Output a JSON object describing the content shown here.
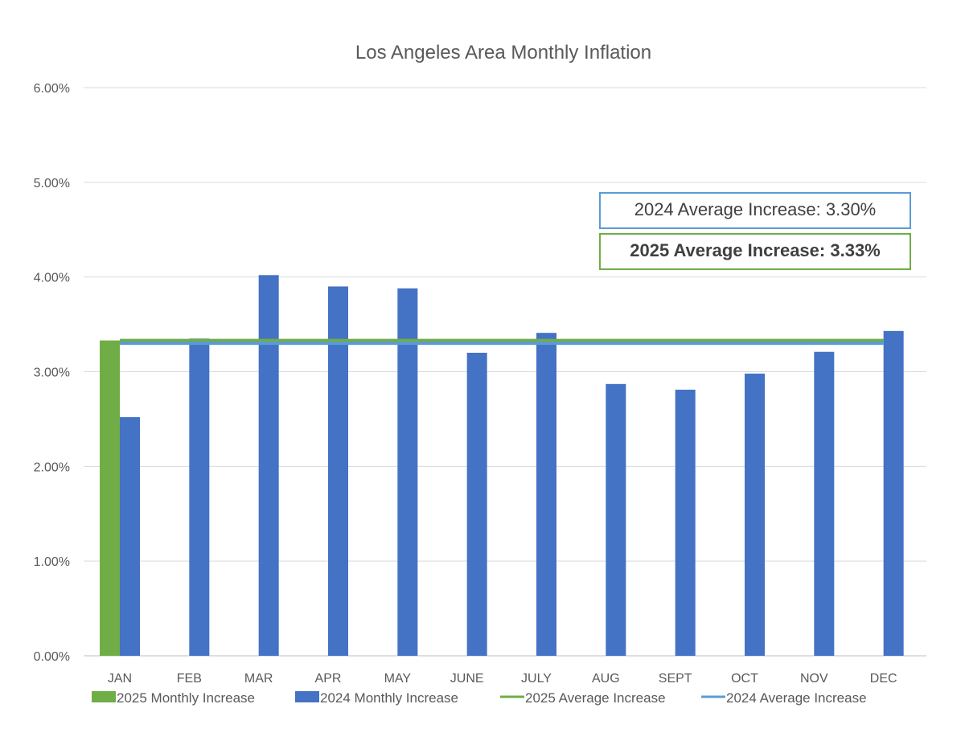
{
  "chart_data": {
    "type": "bar",
    "title": "Los Angeles Area Monthly Inflation",
    "xlabel": "",
    "ylabel": "",
    "ylim": [
      0,
      6
    ],
    "y_ticks": [
      "0.00%",
      "1.00%",
      "2.00%",
      "3.00%",
      "4.00%",
      "5.00%",
      "6.00%"
    ],
    "grid": true,
    "legend_position": "bottom",
    "categories": [
      "JAN",
      "FEB",
      "MAR",
      "APR",
      "MAY",
      "JUNE",
      "JULY",
      "AUG",
      "SEPT",
      "OCT",
      "NOV",
      "DEC"
    ],
    "series": [
      {
        "name": "2025 Monthly Increase",
        "kind": "bar",
        "color": "#70ad47",
        "values": [
          3.33,
          null,
          null,
          null,
          null,
          null,
          null,
          null,
          null,
          null,
          null,
          null
        ]
      },
      {
        "name": "2024 Monthly Increase",
        "kind": "bar",
        "color": "#4472c4",
        "values": [
          2.52,
          3.35,
          4.02,
          3.9,
          3.88,
          3.2,
          3.41,
          2.87,
          2.81,
          2.98,
          3.21,
          3.43
        ]
      },
      {
        "name": "2025 Average Increase",
        "kind": "line",
        "color": "#70ad47",
        "value": 3.33
      },
      {
        "name": "2024 Average Increase",
        "kind": "line",
        "color": "#5b9bd5",
        "value": 3.3
      }
    ],
    "annotations": {
      "avg_2024": {
        "label": "2024 Average Increase",
        "value": "3.30%"
      },
      "avg_2025": {
        "label": "2025 Average Increase",
        "value": "3.33%"
      }
    }
  }
}
